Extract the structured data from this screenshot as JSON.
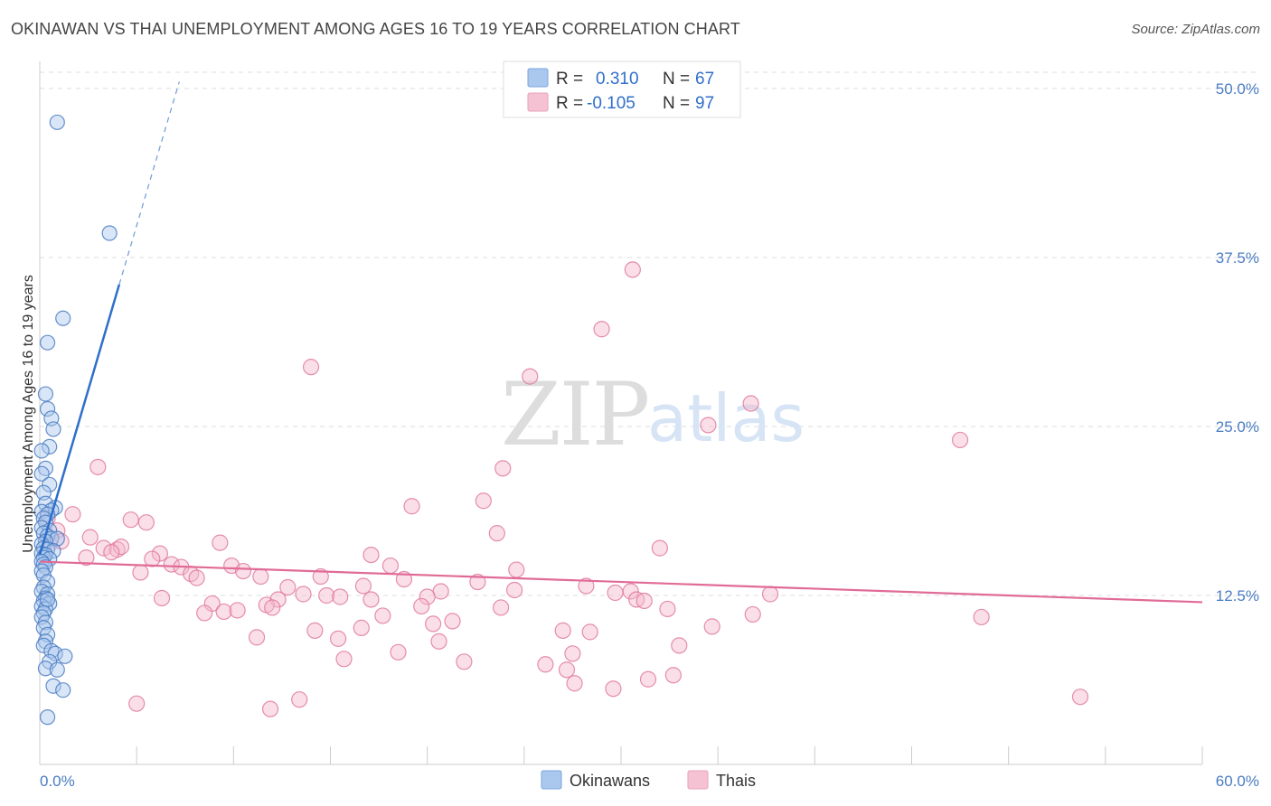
{
  "title": "OKINAWAN VS THAI UNEMPLOYMENT AMONG AGES 16 TO 19 YEARS CORRELATION CHART",
  "source": "Source: ZipAtlas.com",
  "watermark": {
    "zip": "ZIP",
    "atlas": "atlas"
  },
  "colors": {
    "okinawan": "#4a7cc2",
    "okinawan_fill": "#aac8ee",
    "thai": "#e07aa0",
    "thai_fill": "#f5b8cc",
    "grid": "#dddddd",
    "value_text": "#2f6fc9"
  },
  "legend": {
    "rows": [
      {
        "r_label": "R = ",
        "r_value": "0.310",
        "n_label": "N = ",
        "n_value": "67"
      },
      {
        "r_label": "R = ",
        "r_value": "-0.105",
        "n_label": "N = ",
        "n_value": "97"
      }
    ]
  },
  "bottom_legend": [
    "Okinawans",
    "Thais"
  ],
  "chart_data": {
    "type": "scatter",
    "title": "OKINAWAN VS THAI UNEMPLOYMENT AMONG AGES 16 TO 19 YEARS CORRELATION CHART",
    "xlabel": "",
    "ylabel": "Unemployment Among Ages 16 to 19 years",
    "xlim": [
      0,
      60
    ],
    "ylim": [
      0,
      52
    ],
    "x_tick_labels": [
      "0.0%",
      "60.0%"
    ],
    "y_ticks": [
      12.5,
      25.0,
      37.5,
      50.0
    ],
    "y_tick_labels": [
      "12.5%",
      "25.0%",
      "37.5%",
      "50.0%"
    ],
    "grid": true,
    "series": [
      {
        "name": "Okinawans",
        "r": 0.31,
        "n": 67,
        "trend": {
          "x0": 0,
          "y0": 15.5,
          "x1": 4.1,
          "y1": 35.5,
          "dash_x1": 7.2,
          "dash_y1": 50.5
        },
        "points": [
          [
            0.9,
            47.5
          ],
          [
            3.6,
            39.3
          ],
          [
            1.2,
            33.0
          ],
          [
            0.4,
            31.2
          ],
          [
            0.3,
            27.4
          ],
          [
            0.4,
            26.3
          ],
          [
            0.6,
            25.6
          ],
          [
            0.7,
            24.8
          ],
          [
            0.5,
            23.5
          ],
          [
            0.1,
            23.2
          ],
          [
            0.3,
            21.9
          ],
          [
            0.1,
            21.5
          ],
          [
            0.5,
            20.7
          ],
          [
            0.2,
            20.1
          ],
          [
            0.3,
            19.3
          ],
          [
            0.8,
            19.0
          ],
          [
            0.6,
            18.8
          ],
          [
            0.1,
            18.7
          ],
          [
            0.4,
            18.5
          ],
          [
            0.2,
            18.2
          ],
          [
            0.3,
            17.9
          ],
          [
            0.1,
            17.5
          ],
          [
            0.5,
            17.3
          ],
          [
            0.2,
            17.1
          ],
          [
            0.4,
            16.9
          ],
          [
            0.6,
            16.7
          ],
          [
            0.9,
            16.7
          ],
          [
            0.3,
            16.5
          ],
          [
            0.1,
            16.3
          ],
          [
            0.2,
            16.0
          ],
          [
            0.4,
            15.9
          ],
          [
            0.7,
            15.8
          ],
          [
            0.1,
            15.6
          ],
          [
            0.3,
            15.5
          ],
          [
            0.2,
            15.3
          ],
          [
            0.5,
            15.2
          ],
          [
            0.1,
            15.0
          ],
          [
            0.2,
            14.8
          ],
          [
            0.3,
            14.6
          ],
          [
            0.1,
            14.3
          ],
          [
            0.2,
            14.0
          ],
          [
            0.4,
            13.5
          ],
          [
            0.2,
            13.1
          ],
          [
            0.1,
            12.8
          ],
          [
            0.4,
            12.6
          ],
          [
            0.3,
            12.3
          ],
          [
            0.2,
            12.1
          ],
          [
            0.5,
            11.9
          ],
          [
            0.1,
            11.7
          ],
          [
            0.3,
            11.5
          ],
          [
            0.4,
            12.2
          ],
          [
            0.2,
            11.2
          ],
          [
            0.1,
            10.9
          ],
          [
            0.3,
            10.5
          ],
          [
            0.2,
            10.1
          ],
          [
            0.4,
            9.6
          ],
          [
            0.3,
            9.1
          ],
          [
            0.2,
            8.8
          ],
          [
            0.6,
            8.4
          ],
          [
            0.8,
            8.2
          ],
          [
            1.3,
            8.0
          ],
          [
            0.5,
            7.6
          ],
          [
            0.3,
            7.1
          ],
          [
            0.9,
            7.0
          ],
          [
            0.7,
            5.8
          ],
          [
            1.2,
            5.5
          ],
          [
            0.4,
            3.5
          ]
        ]
      },
      {
        "name": "Thais",
        "r": -0.105,
        "n": 97,
        "trend": {
          "x0": 0,
          "y0": 15.0,
          "x1": 60,
          "y1": 12.0
        },
        "points": [
          [
            30.6,
            36.6
          ],
          [
            29.0,
            32.2
          ],
          [
            14.0,
            29.4
          ],
          [
            25.3,
            28.7
          ],
          [
            36.7,
            26.7
          ],
          [
            34.5,
            25.1
          ],
          [
            47.5,
            24.0
          ],
          [
            3.0,
            22.0
          ],
          [
            23.9,
            21.9
          ],
          [
            22.9,
            19.5
          ],
          [
            19.2,
            19.1
          ],
          [
            1.7,
            18.5
          ],
          [
            0.4,
            18.2
          ],
          [
            4.7,
            18.1
          ],
          [
            5.5,
            17.9
          ],
          [
            0.9,
            17.3
          ],
          [
            23.6,
            17.1
          ],
          [
            2.6,
            16.8
          ],
          [
            1.1,
            16.5
          ],
          [
            9.3,
            16.4
          ],
          [
            0.5,
            16.3
          ],
          [
            3.3,
            16.0
          ],
          [
            4.0,
            15.9
          ],
          [
            4.2,
            16.1
          ],
          [
            32.0,
            16.0
          ],
          [
            3.7,
            15.7
          ],
          [
            6.2,
            15.6
          ],
          [
            2.4,
            15.3
          ],
          [
            17.1,
            15.5
          ],
          [
            5.8,
            15.2
          ],
          [
            6.8,
            14.8
          ],
          [
            7.3,
            14.6
          ],
          [
            18.1,
            14.7
          ],
          [
            9.9,
            14.7
          ],
          [
            24.6,
            14.4
          ],
          [
            10.5,
            14.3
          ],
          [
            5.2,
            14.2
          ],
          [
            7.8,
            14.1
          ],
          [
            11.4,
            13.9
          ],
          [
            8.1,
            13.8
          ],
          [
            14.5,
            13.9
          ],
          [
            18.8,
            13.7
          ],
          [
            22.6,
            13.5
          ],
          [
            16.7,
            13.2
          ],
          [
            12.8,
            13.1
          ],
          [
            20.7,
            12.8
          ],
          [
            28.2,
            13.2
          ],
          [
            24.5,
            12.9
          ],
          [
            29.7,
            12.7
          ],
          [
            30.5,
            12.8
          ],
          [
            37.7,
            12.6
          ],
          [
            13.6,
            12.6
          ],
          [
            14.8,
            12.5
          ],
          [
            30.8,
            12.2
          ],
          [
            6.3,
            12.3
          ],
          [
            12.3,
            12.2
          ],
          [
            15.5,
            12.4
          ],
          [
            20.0,
            12.4
          ],
          [
            8.9,
            11.9
          ],
          [
            11.7,
            11.8
          ],
          [
            17.1,
            12.2
          ],
          [
            19.7,
            11.7
          ],
          [
            23.8,
            11.6
          ],
          [
            31.2,
            12.1
          ],
          [
            8.5,
            11.2
          ],
          [
            9.5,
            11.3
          ],
          [
            10.2,
            11.4
          ],
          [
            12.0,
            11.6
          ],
          [
            32.4,
            11.5
          ],
          [
            36.8,
            11.1
          ],
          [
            17.7,
            11.0
          ],
          [
            48.6,
            10.9
          ],
          [
            20.3,
            10.4
          ],
          [
            21.3,
            10.6
          ],
          [
            16.6,
            10.1
          ],
          [
            14.2,
            9.9
          ],
          [
            27.0,
            9.9
          ],
          [
            34.7,
            10.2
          ],
          [
            28.4,
            9.8
          ],
          [
            11.2,
            9.4
          ],
          [
            15.4,
            9.3
          ],
          [
            20.6,
            9.1
          ],
          [
            33.0,
            8.8
          ],
          [
            18.5,
            8.3
          ],
          [
            27.5,
            8.2
          ],
          [
            15.7,
            7.8
          ],
          [
            21.9,
            7.6
          ],
          [
            26.1,
            7.4
          ],
          [
            27.2,
            7.0
          ],
          [
            32.7,
            6.6
          ],
          [
            31.4,
            6.3
          ],
          [
            27.6,
            6.0
          ],
          [
            29.6,
            5.6
          ],
          [
            53.7,
            5.0
          ],
          [
            11.9,
            4.1
          ],
          [
            5.0,
            4.5
          ],
          [
            13.4,
            4.8
          ]
        ]
      }
    ]
  }
}
